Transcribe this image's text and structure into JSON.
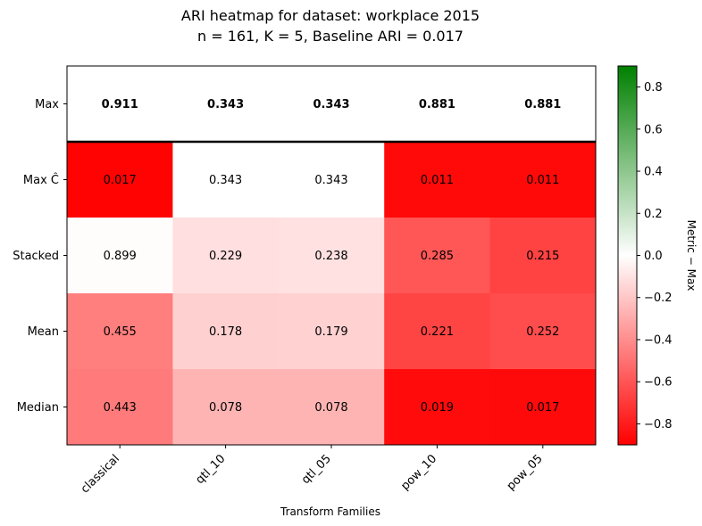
{
  "chart_data": {
    "type": "heatmap",
    "title_line1": "ARI heatmap for dataset: workplace 2015",
    "title_line2": "n = 161, K = 5, Baseline ARI = 0.017",
    "xlabel": "Transform Families",
    "ylabel": "",
    "columns": [
      "classical",
      "qtl_10",
      "qtl_05",
      "pow_10",
      "pow_05"
    ],
    "rows": [
      "Max",
      "Max Ĉ",
      "Stacked",
      "Mean",
      "Median"
    ],
    "values": [
      [
        0.911,
        0.343,
        0.343,
        0.881,
        0.881
      ],
      [
        0.017,
        0.343,
        0.343,
        0.011,
        0.011
      ],
      [
        0.899,
        0.229,
        0.238,
        0.285,
        0.215
      ],
      [
        0.455,
        0.178,
        0.179,
        0.221,
        0.252
      ],
      [
        0.443,
        0.078,
        0.078,
        0.019,
        0.017
      ]
    ],
    "bold_rows": [
      "Max"
    ],
    "colorbar": {
      "label": "Metric − Max",
      "range": [
        -0.9,
        0.9
      ],
      "ticks": [
        "0.8",
        "0.6",
        "0.4",
        "0.2",
        "0.0",
        "−0.2",
        "−0.4",
        "−0.6",
        "−0.8"
      ],
      "tick_values": [
        0.8,
        0.6,
        0.4,
        0.2,
        0.0,
        -0.2,
        -0.4,
        -0.6,
        -0.8
      ],
      "colors": {
        "low": "#ff0000",
        "mid": "#ffffff",
        "high": "#008000"
      }
    }
  }
}
